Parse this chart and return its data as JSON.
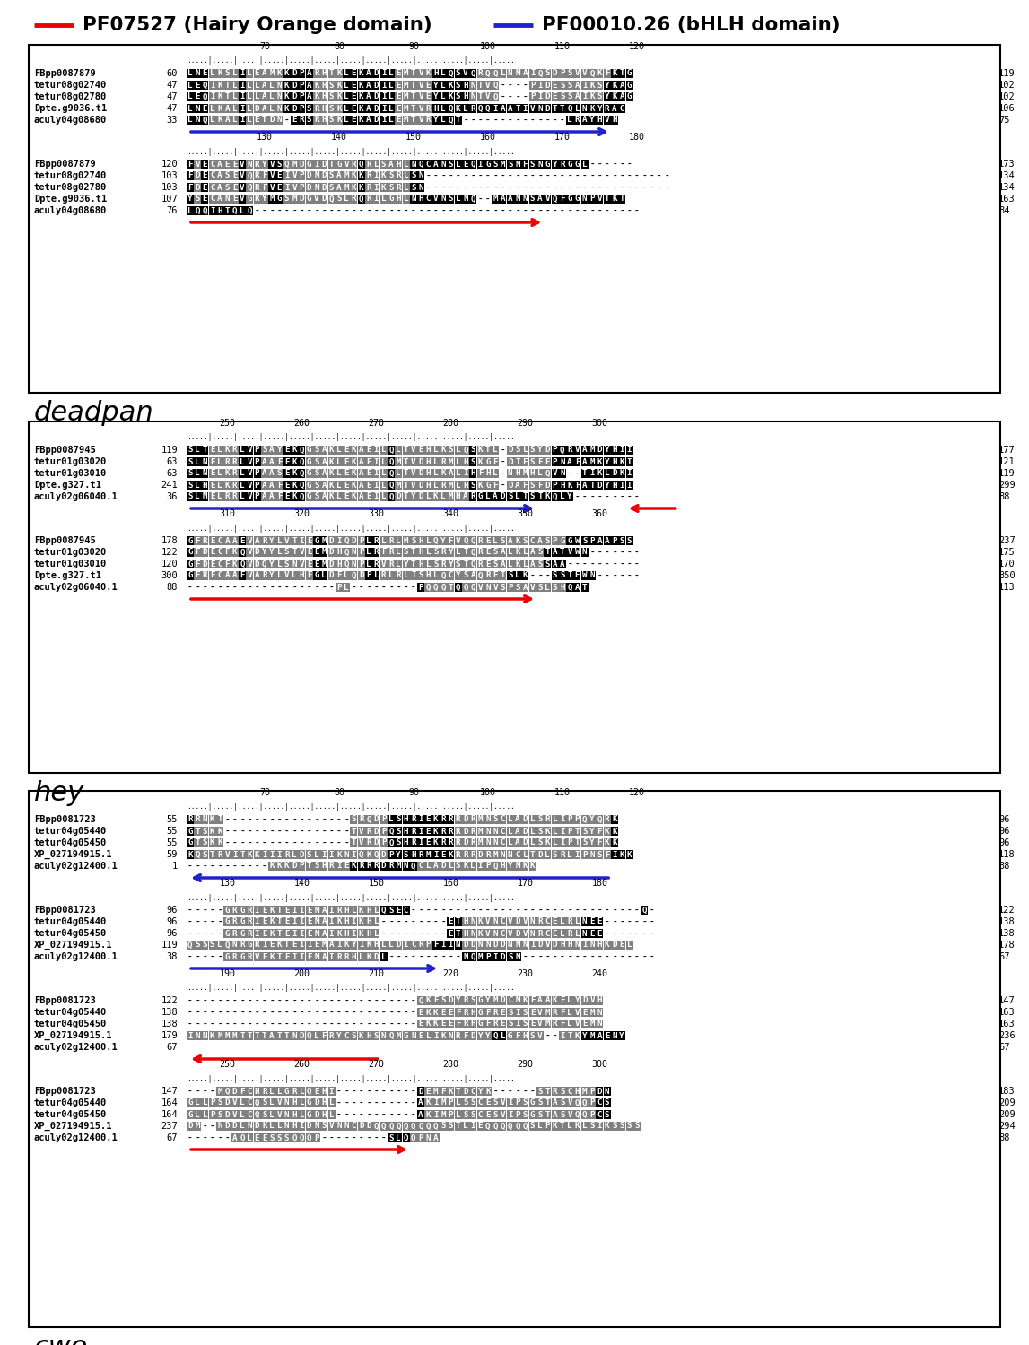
{
  "legend": {
    "red_label": "PF07527 (Hairy Orange domain)",
    "blue_label": "PF00010.26 (bHLH domain)",
    "red_color": "#EE0000",
    "blue_color": "#2222CC"
  },
  "section_labels": [
    "deadpan",
    "hey",
    "cwo"
  ],
  "background": "#FFFFFF"
}
